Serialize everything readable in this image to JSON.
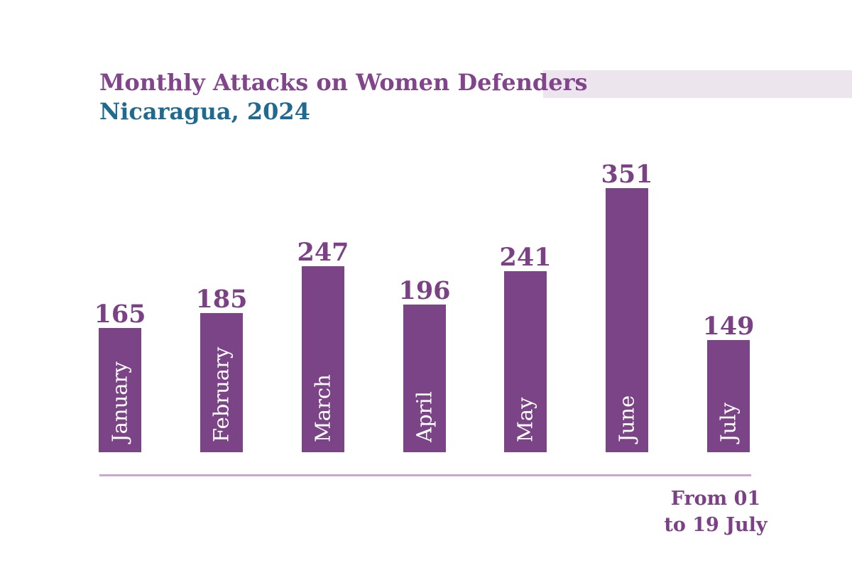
{
  "chart_data": {
    "type": "bar",
    "title": "Monthly Attacks on Women Defenders",
    "subtitle": "Nicaragua, 2024",
    "categories": [
      "January",
      "February",
      "March",
      "April",
      "May",
      "June",
      "July"
    ],
    "values": [
      165,
      185,
      247,
      196,
      241,
      351,
      149
    ],
    "annotation": {
      "lines": [
        "From 01",
        "to 19 July"
      ]
    },
    "orientation": "vertical",
    "value_labels_position": "above-bars",
    "category_labels_position": "inside-bars-rotated-90ccw",
    "y_axis_visible": false,
    "x_axis_visible": true,
    "grid": false,
    "legend": false
  },
  "colors": {
    "background": "#ffffff",
    "title": "#80458a",
    "subtitle": "#1f6a8e",
    "bar": "#7b4487",
    "value_label": "#7a4185",
    "month_label": "#ffffff",
    "baseline": "#c8a8ce",
    "header_band": "#ece5ee",
    "annotation_text": "#7a4185"
  }
}
